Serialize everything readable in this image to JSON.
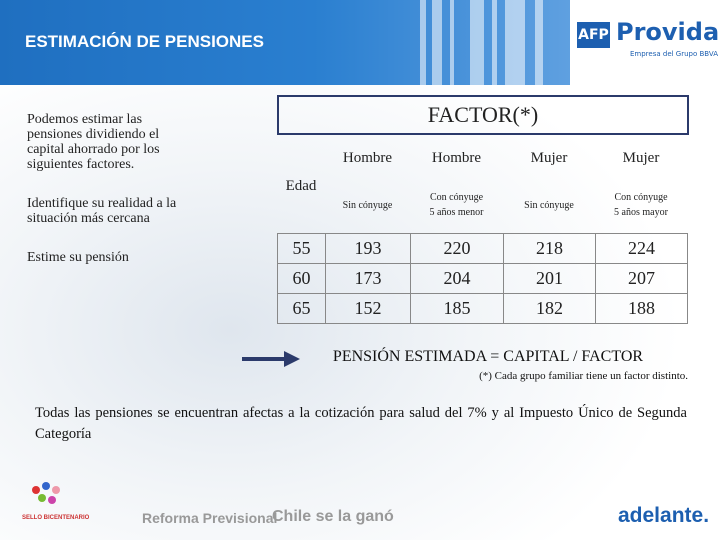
{
  "header": {
    "title": "ESTIMACIÓN DE PENSIONES",
    "logo_afp": "AFP",
    "logo_name": "Provida",
    "logo_sub": "Empresa del Grupo BBVA"
  },
  "intro": [
    "Podemos estimar las pensiones dividiendo el capital ahorrado por los siguientes factores.",
    "Identifique su realidad a la situación más cercana",
    "Estime su pensión"
  ],
  "table": {
    "title": "FACTOR(*)",
    "age_label": "Edad",
    "columns": [
      {
        "sex": "Hombre",
        "status": [
          "Sin cónyuge"
        ]
      },
      {
        "sex": "Hombre",
        "status": [
          "Con cónyuge",
          "5 años menor"
        ]
      },
      {
        "sex": "Mujer",
        "status": [
          "Sin cónyuge"
        ]
      },
      {
        "sex": "Mujer",
        "status": [
          "Con cónyuge",
          "5 años mayor"
        ]
      }
    ],
    "rows": [
      {
        "age": 55,
        "values": [
          193,
          220,
          218,
          224
        ]
      },
      {
        "age": 60,
        "values": [
          173,
          204,
          201,
          207
        ]
      },
      {
        "age": 65,
        "values": [
          152,
          185,
          182,
          188
        ]
      }
    ]
  },
  "formula": "PENSIÓN ESTIMADA = CAPITAL / FACTOR",
  "footnote": "(*) Cada grupo familiar tiene un factor distinto.",
  "note": "Todas las pensiones se encuentran afectas a la cotización para salud del 7% y al Impuesto Único de Segunda Categoría",
  "footer": {
    "reform": "Reforma Previsional",
    "chile": "Chile se la ganó",
    "adelante": "adelante.",
    "seal": "SELLO BICENTENARIO"
  }
}
